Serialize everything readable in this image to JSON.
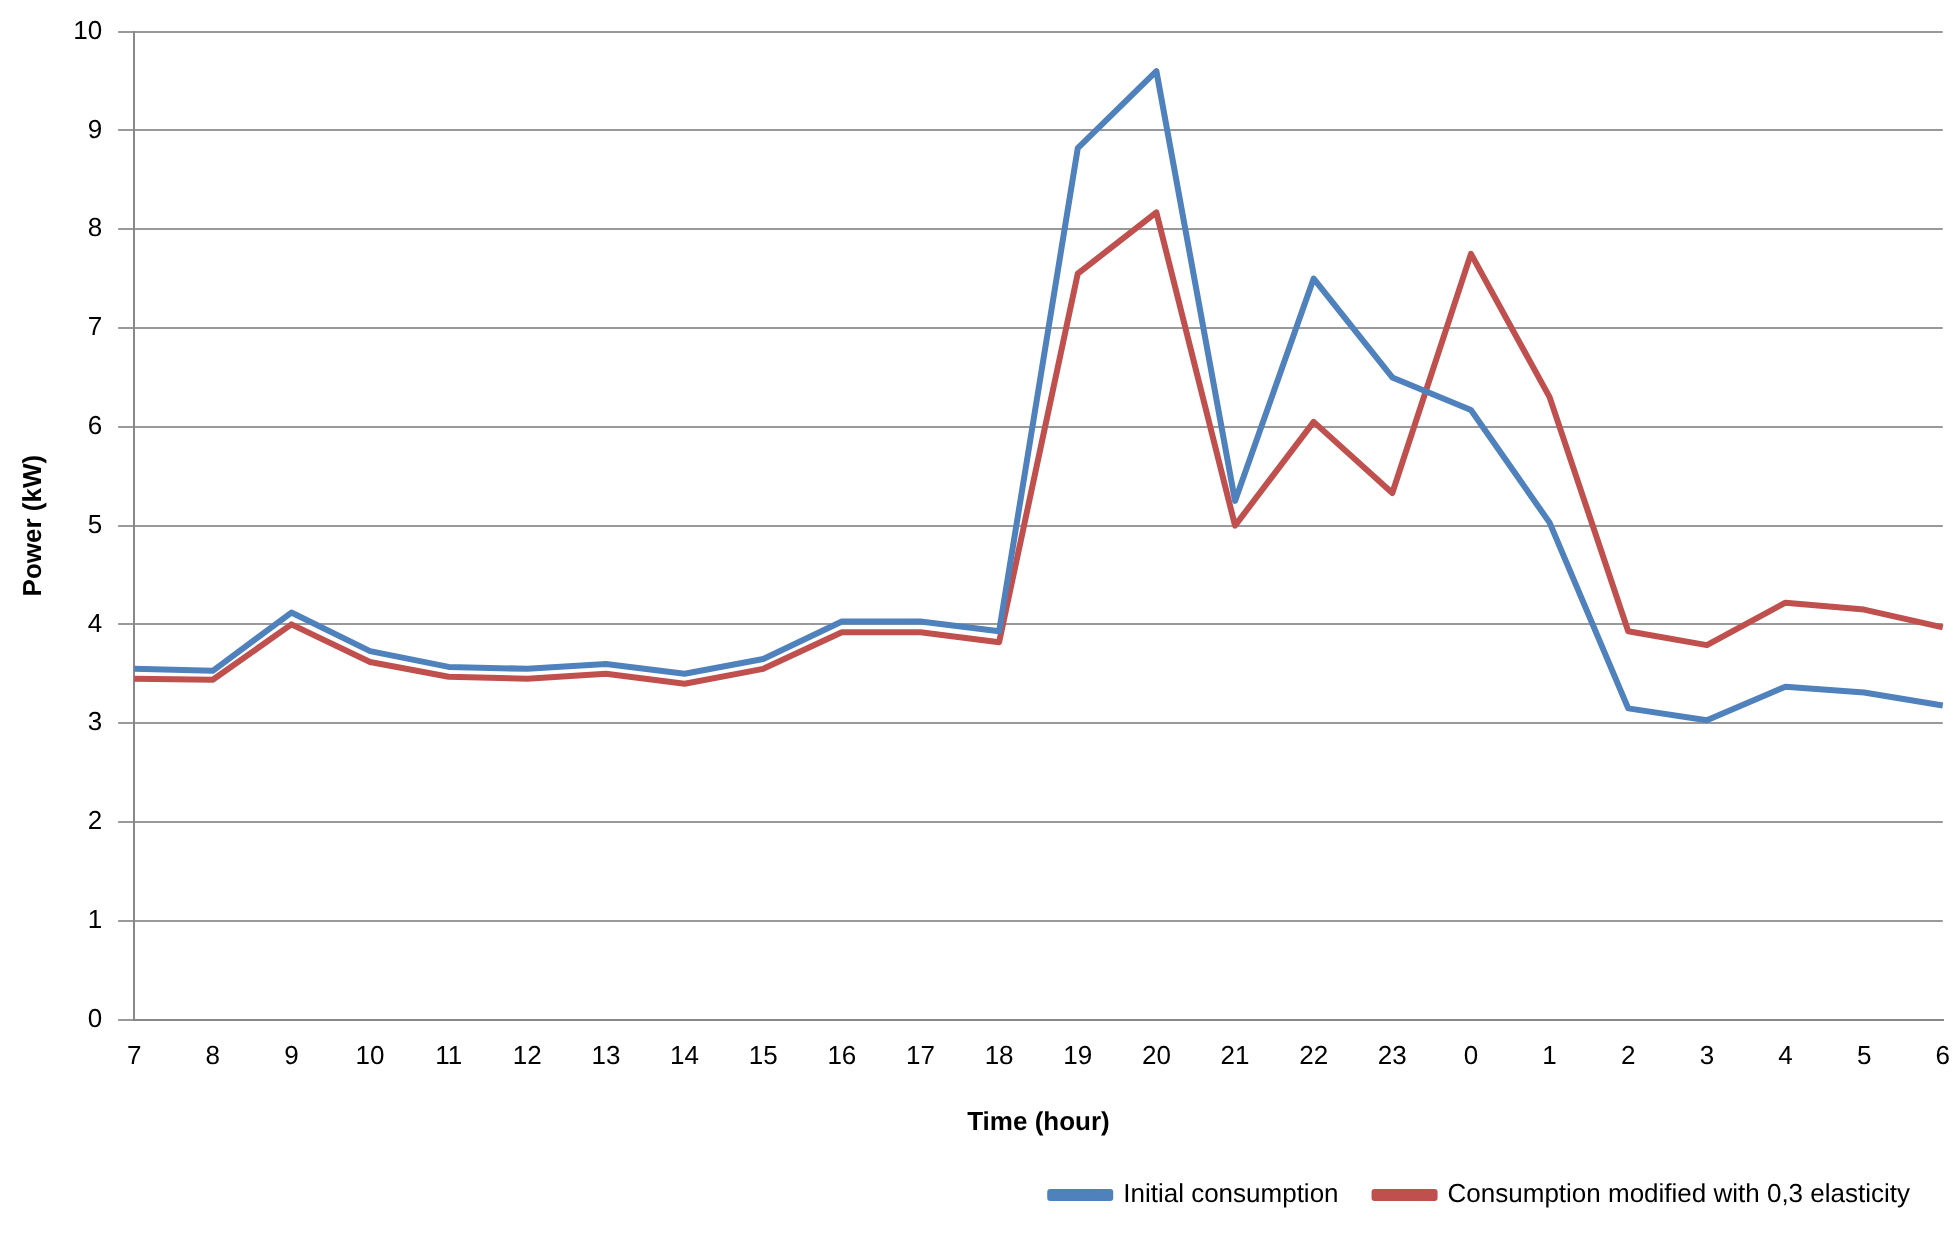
{
  "chart_data": {
    "type": "line",
    "xlabel": "Time (hour)",
    "ylabel": "Power (kW)",
    "categories": [
      "7",
      "8",
      "9",
      "10",
      "11",
      "12",
      "13",
      "14",
      "15",
      "16",
      "17",
      "18",
      "19",
      "20",
      "21",
      "22",
      "23",
      "0",
      "1",
      "2",
      "3",
      "4",
      "5",
      "6"
    ],
    "series": [
      {
        "name": "Initial consumption",
        "color": "#4f81bd",
        "values": [
          3.55,
          3.53,
          4.12,
          3.73,
          3.57,
          3.55,
          3.6,
          3.5,
          3.65,
          4.03,
          4.03,
          3.93,
          8.82,
          9.6,
          5.25,
          7.5,
          6.5,
          6.17,
          5.03,
          3.15,
          3.03,
          3.37,
          3.31,
          3.18
        ]
      },
      {
        "name": "Consumption modified with 0,3 elasticity",
        "color": "#c0504d",
        "values": [
          3.45,
          3.44,
          4.0,
          3.62,
          3.47,
          3.45,
          3.5,
          3.4,
          3.55,
          3.92,
          3.92,
          3.82,
          7.55,
          8.17,
          5.0,
          6.05,
          5.33,
          7.75,
          6.3,
          3.93,
          3.79,
          4.22,
          4.15,
          3.97
        ]
      }
    ],
    "ylim": [
      0,
      10
    ],
    "yticks": [
      0,
      1,
      2,
      3,
      4,
      5,
      6,
      7,
      8,
      9,
      10
    ],
    "grid": "y",
    "legend": "bottom right",
    "marker": "none",
    "line_style": "solid"
  }
}
